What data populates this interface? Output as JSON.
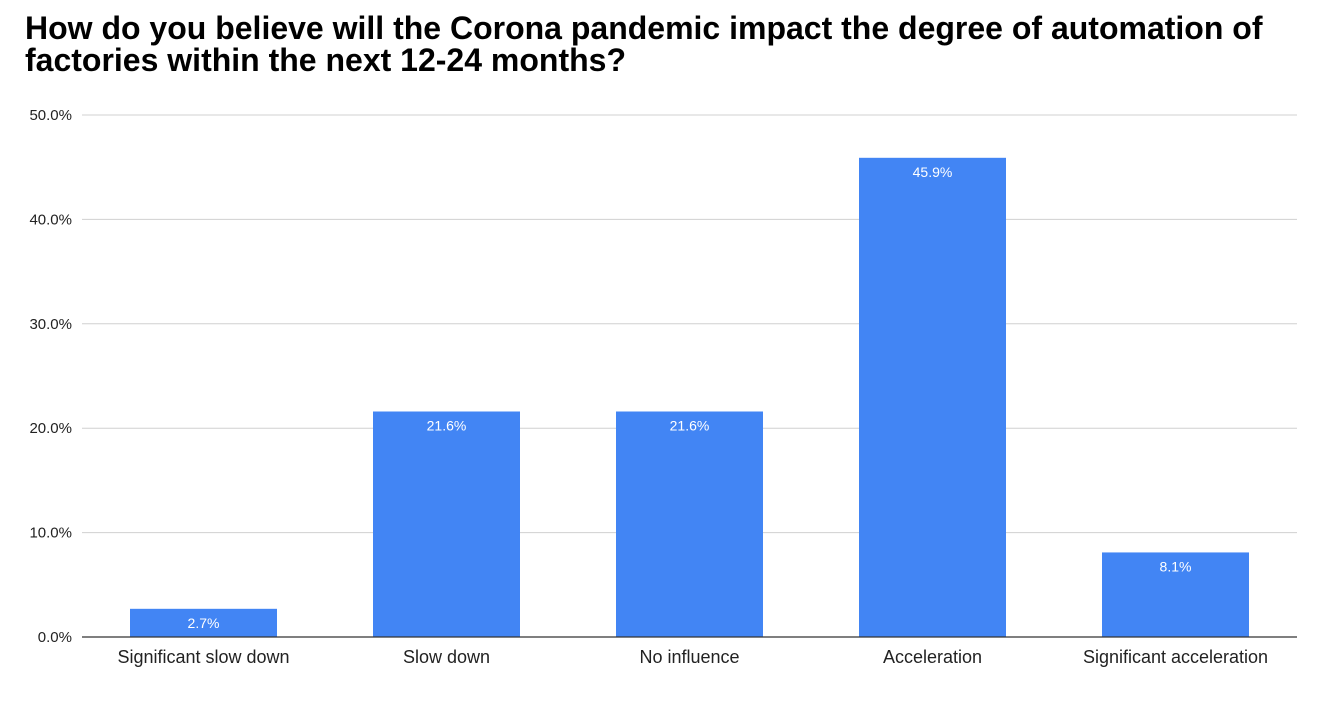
{
  "chart_data": {
    "type": "bar",
    "title": "How do you believe will the Corona pandemic impact the degree of automation of factories within the next 12-24 months?",
    "categories": [
      "Significant slow down",
      "Slow down",
      "No influence",
      "Acceleration",
      "Significant acceleration"
    ],
    "values": [
      2.7,
      21.6,
      21.6,
      45.9,
      8.1
    ],
    "data_labels": [
      "2.7%",
      "21.6%",
      "21.6%",
      "45.9%",
      "8.1%"
    ],
    "ylim": [
      0,
      50
    ],
    "yticks": [
      0,
      10,
      20,
      30,
      40,
      50
    ],
    "ytick_labels": [
      "0.0%",
      "10.0%",
      "20.0%",
      "30.0%",
      "40.0%",
      "50.0%"
    ],
    "xlabel": "",
    "ylabel": "",
    "grid": true,
    "legend": "none",
    "bar_color": "#4285f4"
  }
}
